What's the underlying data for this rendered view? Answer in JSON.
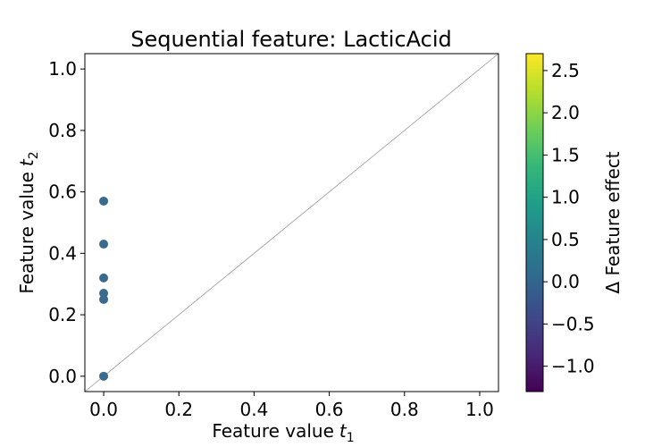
{
  "chart_data": {
    "type": "scatter",
    "title": "Sequential feature: LacticAcid",
    "xlabel": "Feature value",
    "xlabel_sub": "1",
    "ylabel": "Feature value",
    "ylabel_sub": "2",
    "xlim": [
      -0.05,
      1.05
    ],
    "ylim": [
      -0.05,
      1.05
    ],
    "xticks": [
      0.0,
      0.2,
      0.4,
      0.6,
      0.8,
      1.0
    ],
    "xtick_labels": [
      "0.0",
      "0.2",
      "0.4",
      "0.6",
      "0.8",
      "1.0"
    ],
    "yticks": [
      0.0,
      0.2,
      0.4,
      0.6,
      0.8,
      1.0
    ],
    "ytick_labels": [
      "0.0",
      "0.2",
      "0.4",
      "0.6",
      "0.8",
      "1.0"
    ],
    "grid": false,
    "reference_line": "y = x",
    "points": [
      {
        "x": 0.0,
        "y": 0.0,
        "c": 0.0
      },
      {
        "x": 0.0,
        "y": 0.25,
        "c": 0.0
      },
      {
        "x": 0.0,
        "y": 0.27,
        "c": 0.0
      },
      {
        "x": 0.0,
        "y": 0.32,
        "c": 0.0
      },
      {
        "x": 0.0,
        "y": 0.43,
        "c": 0.0
      },
      {
        "x": 0.0,
        "y": 0.57,
        "c": 0.0
      }
    ],
    "colorbar": {
      "label": "Δ Feature effect",
      "colormap": "viridis",
      "range": [
        -1.3,
        2.7
      ],
      "ticks": [
        -1.0,
        -0.5,
        0.0,
        0.5,
        1.0,
        1.5,
        2.0,
        2.5
      ],
      "tick_labels": [
        "−1.0",
        "−0.5",
        "0.0",
        "0.5",
        "1.0",
        "1.5",
        "2.0",
        "2.5"
      ]
    },
    "colors": {
      "point": "#3b6a8f",
      "reference_line": "#999999",
      "viridis": [
        "#440154",
        "#482878",
        "#3e4989",
        "#31688e",
        "#26828e",
        "#1f9e89",
        "#35b779",
        "#6ece58",
        "#b5de2b",
        "#fde725"
      ]
    }
  }
}
